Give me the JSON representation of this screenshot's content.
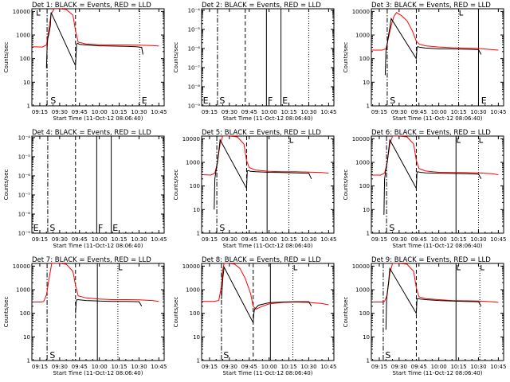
{
  "chart_data": {
    "type": "line",
    "x_tick_labels": [
      "09:15",
      "09:30",
      "09:45",
      "10:00",
      "10:15",
      "10:30",
      "10:45"
    ],
    "x_ticks_min": [
      555,
      570,
      585,
      600,
      615,
      630,
      645
    ],
    "xlim": [
      549,
      649
    ],
    "xlabel": "Start Time (11-Oct-12 08:06:40)",
    "ylabel": "Counts/sec",
    "colors": {
      "events": "#000000",
      "lld": "#ff0000"
    },
    "panels": [
      {
        "title": "Det 1: BLACK = Events, RED = LLD",
        "ylim": [
          1,
          13000
        ],
        "yticks": [
          1,
          10,
          100,
          1000,
          10000
        ],
        "ytick_labels": [
          "1",
          "10",
          "100",
          "1000",
          "10000"
        ],
        "vlines": [
          {
            "x": 560.5,
            "style": "dashdot"
          },
          {
            "x": 582,
            "style": "dashed"
          },
          {
            "x": 630.5,
            "style": "dotted"
          }
        ],
        "markers": [
          {
            "x": 553,
            "label": ""
          },
          {
            "x": 563,
            "label": "S"
          },
          {
            "x": 632,
            "label": "E"
          }
        ],
        "lld": {
          "x": [
            549,
            557,
            560,
            562,
            563.5,
            566,
            570,
            575,
            580,
            582,
            584,
            590,
            600,
            610,
            620,
            630,
            640,
            645
          ],
          "y": [
            320,
            310,
            380,
            2000,
            8000,
            13000,
            13000,
            12000,
            7000,
            1500,
            500,
            420,
            390,
            380,
            380,
            370,
            360,
            340
          ]
        },
        "events": {
          "x": [
            560,
            560.5,
            561,
            562,
            563,
            563.5,
            582,
            582.8,
            583.5,
            585,
            590,
            600,
            610,
            620,
            628,
            632,
            633
          ],
          "y": [
            40,
            300,
            700,
            1200,
            2500,
            9000,
            50,
            400,
            450,
            400,
            380,
            350,
            340,
            330,
            320,
            300,
            150
          ]
        }
      },
      {
        "title": "Det 2: BLACK = Events, RED = LLD",
        "ylim": [
          1e-09,
          0.00012
        ],
        "yticks": [
          1e-09,
          1e-08,
          1e-07,
          1e-06,
          1e-05,
          0.0001
        ],
        "ytick_labels": [
          "10⁻⁹",
          "10⁻⁸",
          "10⁻⁷",
          "10⁻⁶",
          "10⁻⁵",
          "10⁻⁴"
        ],
        "vlines": [
          {
            "x": 561,
            "style": "dashdot"
          },
          {
            "x": 582,
            "style": "dashed"
          },
          {
            "x": 598,
            "style": "solid"
          },
          {
            "x": 609,
            "style": "solid"
          },
          {
            "x": 630,
            "style": "dotted"
          }
        ],
        "markers": [
          {
            "x": 550,
            "label": "E"
          },
          {
            "x": 562.5,
            "label": "S"
          },
          {
            "x": 599,
            "label": "F"
          },
          {
            "x": 610,
            "label": "E"
          }
        ],
        "lld": null,
        "events": null
      },
      {
        "title": "Det 3: BLACK = Events, RED = LLD",
        "ylim": [
          1,
          13000
        ],
        "yticks": [
          1,
          10,
          100,
          1000,
          10000
        ],
        "ytick_labels": [
          "1",
          "10",
          "100",
          "1000",
          "10000"
        ],
        "vlines": [
          {
            "x": 561,
            "style": "dashdot"
          },
          {
            "x": 583,
            "style": "dashed"
          },
          {
            "x": 615,
            "style": "dotted"
          },
          {
            "x": 630,
            "style": "solid"
          }
        ],
        "markers": [
          {
            "x": 563,
            "label": "S"
          },
          {
            "x": 616,
            "label": ""
          },
          {
            "x": 632,
            "label": "E"
          }
        ],
        "lld": {
          "x": [
            549,
            557,
            560,
            562,
            564,
            566,
            568,
            572,
            576,
            580,
            583,
            585,
            590,
            600,
            610,
            620,
            630,
            640,
            645
          ],
          "y": [
            230,
            230,
            260,
            800,
            2500,
            6000,
            9000,
            6500,
            4000,
            1500,
            550,
            420,
            350,
            310,
            290,
            280,
            270,
            240,
            230
          ]
        },
        "events": {
          "x": [
            559.5,
            560,
            561,
            562,
            563,
            564,
            583,
            583.5,
            584,
            586,
            590,
            600,
            610,
            620,
            630,
            632
          ],
          "y": [
            20,
            200,
            400,
            1000,
            2000,
            5000,
            100,
            300,
            320,
            300,
            280,
            260,
            260,
            250,
            240,
            150
          ]
        }
      },
      {
        "title": "Det 4: BLACK = Events, RED = LLD",
        "ylim": [
          1e-09,
          0.00012
        ],
        "yticks": [
          1e-09,
          1e-08,
          1e-07,
          1e-06,
          1e-05,
          0.0001
        ],
        "ytick_labels": [
          "10⁻⁹",
          "10⁻⁸",
          "10⁻⁷",
          "10⁻⁶",
          "10⁻⁵",
          "10⁻⁴"
        ],
        "vlines": [
          {
            "x": 561,
            "style": "dashdot"
          },
          {
            "x": 582,
            "style": "dashed"
          },
          {
            "x": 598,
            "style": "solid"
          },
          {
            "x": 609,
            "style": "solid"
          }
        ],
        "markers": [
          {
            "x": 550,
            "label": "E"
          },
          {
            "x": 562.5,
            "label": "S"
          },
          {
            "x": 599,
            "label": "F"
          },
          {
            "x": 610,
            "label": "E"
          }
        ],
        "lld": null,
        "events": null
      },
      {
        "title": "Det 5: BLACK = Events, RED = LLD",
        "ylim": [
          1,
          13000
        ],
        "yticks": [
          1,
          10,
          100,
          1000,
          10000
        ],
        "ytick_labels": [
          "1",
          "10",
          "100",
          "1000",
          "10000"
        ],
        "vlines": [
          {
            "x": 560.5,
            "style": "dashdot"
          },
          {
            "x": 583,
            "style": "dashed"
          },
          {
            "x": 598.5,
            "style": "solid"
          },
          {
            "x": 615,
            "style": "dotted"
          }
        ],
        "markers": [
          {
            "x": 562.5,
            "label": "S"
          },
          {
            "x": 616,
            "label": ""
          }
        ],
        "lld": {
          "x": [
            549,
            556,
            559,
            561,
            563,
            565,
            570,
            576,
            581,
            583,
            585,
            590,
            600,
            610,
            620,
            630,
            640,
            645
          ],
          "y": [
            300,
            290,
            350,
            1000,
            6000,
            13000,
            13000,
            12000,
            6000,
            1200,
            600,
            470,
            420,
            400,
            400,
            390,
            370,
            350
          ]
        },
        "events": {
          "x": [
            558.5,
            559,
            560,
            561,
            562,
            563,
            583,
            583.5,
            584,
            586,
            590,
            600,
            610,
            620,
            630,
            632
          ],
          "y": [
            10,
            200,
            500,
            1000,
            3000,
            9000,
            80,
            420,
            450,
            420,
            400,
            380,
            370,
            360,
            350,
            200
          ]
        }
      },
      {
        "title": "Det 6: BLACK = Events, RED = LLD",
        "ylim": [
          1,
          13000
        ],
        "yticks": [
          1,
          10,
          100,
          1000,
          10000
        ],
        "ytick_labels": [
          "1",
          "10",
          "100",
          "1000",
          "10000"
        ],
        "vlines": [
          {
            "x": 560.5,
            "style": "dashdot"
          },
          {
            "x": 583,
            "style": "dashed"
          },
          {
            "x": 613,
            "style": "solid"
          },
          {
            "x": 630,
            "style": "dotted"
          }
        ],
        "markers": [
          {
            "x": 562.5,
            "label": "S"
          },
          {
            "x": 614,
            "label": ""
          },
          {
            "x": 631,
            "label": ""
          }
        ],
        "lld": {
          "x": [
            549,
            556,
            559,
            561,
            563,
            565,
            570,
            576,
            581,
            583,
            585,
            590,
            600,
            610,
            620,
            630,
            640,
            645
          ],
          "y": [
            290,
            290,
            350,
            1000,
            6000,
            13000,
            13000,
            12000,
            6000,
            1200,
            550,
            430,
            380,
            370,
            370,
            360,
            330,
            300
          ]
        },
        "events": {
          "x": [
            558.5,
            559,
            560,
            561,
            562,
            563,
            583,
            583.5,
            584,
            586,
            590,
            600,
            610,
            620,
            630,
            632
          ],
          "y": [
            6,
            200,
            500,
            1000,
            3000,
            9000,
            80,
            380,
            400,
            380,
            360,
            350,
            340,
            330,
            320,
            200
          ]
        }
      },
      {
        "title": "Det 7: BLACK = Events, RED = LLD",
        "ylim": [
          1,
          13000
        ],
        "yticks": [
          1,
          10,
          100,
          1000,
          10000
        ],
        "ytick_labels": [
          "1",
          "10",
          "100",
          "1000",
          "10000"
        ],
        "vlines": [
          {
            "x": 560.5,
            "style": "dashdot"
          },
          {
            "x": 582,
            "style": "dashed"
          },
          {
            "x": 598.5,
            "style": "solid"
          },
          {
            "x": 614,
            "style": "dotted"
          }
        ],
        "markers": [
          {
            "x": 562.5,
            "label": "S"
          },
          {
            "x": 615,
            "label": ""
          }
        ],
        "lld": {
          "x": [
            549,
            556,
            558,
            560,
            562,
            564,
            570,
            575,
            580,
            582,
            584,
            590,
            600,
            610,
            620,
            630,
            640,
            645
          ],
          "y": [
            300,
            300,
            320,
            600,
            3000,
            13000,
            13000,
            12000,
            6000,
            1500,
            550,
            450,
            400,
            380,
            380,
            370,
            350,
            320
          ]
        },
        "events": {
          "x": [
            582,
            582.5,
            583,
            585,
            590,
            600,
            610,
            620,
            630,
            632
          ],
          "y": [
            100,
            300,
            380,
            370,
            350,
            330,
            320,
            320,
            310,
            200
          ]
        }
      },
      {
        "title": "Det 8: BLACK = Events, RED = LLD",
        "ylim": [
          1,
          13000
        ],
        "yticks": [
          1,
          10,
          100,
          1000,
          10000
        ],
        "ytick_labels": [
          "1",
          "10",
          "100",
          "1000",
          "10000"
        ],
        "vlines": [
          {
            "x": 564,
            "style": "dashdot"
          },
          {
            "x": 588,
            "style": "dashed"
          },
          {
            "x": 601,
            "style": "solid"
          },
          {
            "x": 618,
            "style": "dotted"
          }
        ],
        "markers": [
          {
            "x": 565.5,
            "label": "S"
          },
          {
            "x": 619,
            "label": ""
          }
        ],
        "lld": {
          "x": [
            549,
            558,
            562,
            564,
            565,
            566,
            570,
            574,
            578,
            582,
            586,
            588,
            590,
            595,
            600,
            610,
            620,
            630,
            640,
            645
          ],
          "y": [
            320,
            320,
            350,
            1500,
            7000,
            13000,
            13000,
            12000,
            8000,
            3000,
            700,
            200,
            150,
            200,
            250,
            290,
            300,
            290,
            260,
            230
          ]
        },
        "events": {
          "x": [
            564,
            565,
            566,
            588,
            588.5,
            589,
            592,
            600,
            610,
            620,
            630,
            632
          ],
          "y": [
            400,
            3000,
            9000,
            40,
            100,
            150,
            220,
            280,
            300,
            310,
            310,
            200
          ]
        }
      },
      {
        "title": "Det 9: BLACK = Events, RED = LLD",
        "ylim": [
          1,
          13000
        ],
        "yticks": [
          1,
          10,
          100,
          1000,
          10000
        ],
        "ytick_labels": [
          "1",
          "10",
          "100",
          "1000",
          "10000"
        ],
        "vlines": [
          {
            "x": 558,
            "style": "dashdot"
          },
          {
            "x": 583,
            "style": "dashed"
          },
          {
            "x": 613,
            "style": "solid"
          },
          {
            "x": 631,
            "style": "dotted"
          }
        ],
        "markers": [
          {
            "x": 559.5,
            "label": "S"
          },
          {
            "x": 614,
            "label": ""
          },
          {
            "x": 632,
            "label": ""
          }
        ],
        "lld": {
          "x": [
            549,
            557,
            559,
            561,
            563,
            565,
            570,
            576,
            581,
            583,
            585,
            590,
            600,
            610,
            620,
            630,
            640,
            645
          ],
          "y": [
            300,
            300,
            320,
            600,
            5000,
            13000,
            13000,
            12000,
            6000,
            1200,
            500,
            420,
            380,
            350,
            340,
            330,
            310,
            290
          ]
        },
        "events": {
          "x": [
            560,
            560.5,
            561,
            562,
            563,
            583,
            583.5,
            584,
            586,
            590,
            600,
            610,
            620,
            630,
            632
          ],
          "y": [
            20,
            300,
            700,
            2000,
            8000,
            100,
            400,
            420,
            400,
            380,
            350,
            330,
            320,
            310,
            200
          ]
        }
      }
    ]
  }
}
